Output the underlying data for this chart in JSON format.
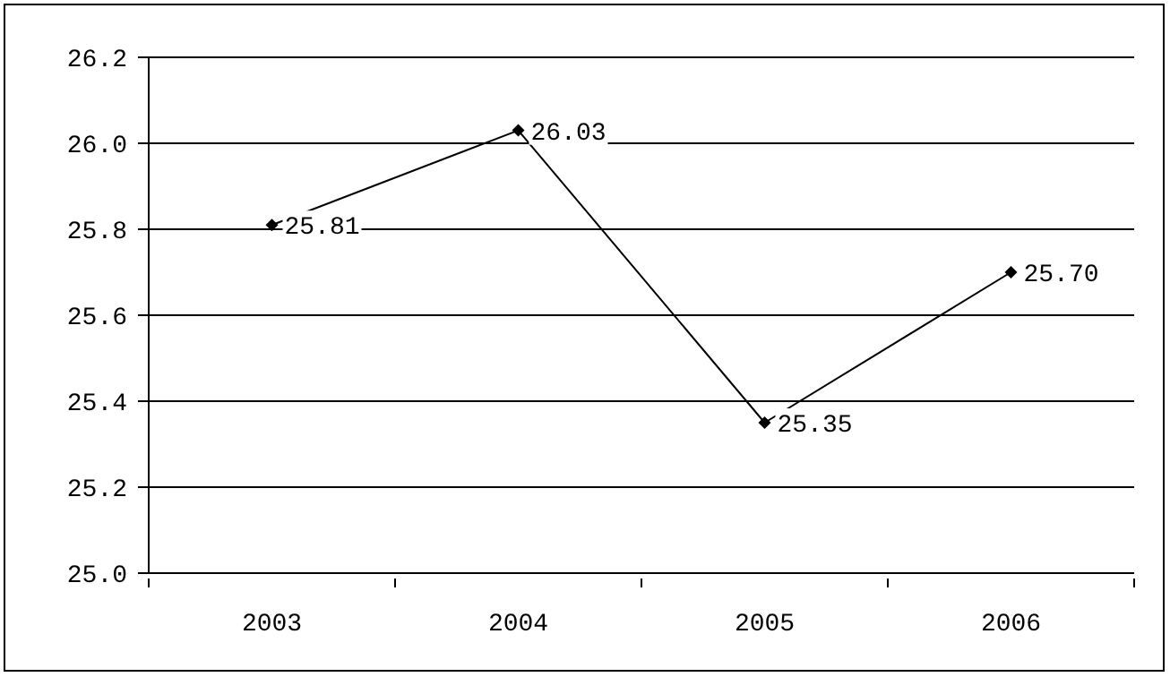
{
  "chart_data": {
    "type": "line",
    "categories": [
      "2003",
      "2004",
      "2005",
      "2006"
    ],
    "series": [
      {
        "color": "#000000",
        "values": [
          25.81,
          26.03,
          25.35,
          25.7
        ],
        "value_labels": [
          "25.81",
          "26.03",
          "25.35",
          "25.70"
        ]
      }
    ],
    "ylim": [
      25.0,
      26.2
    ],
    "yticks": [
      {
        "value": 25,
        "label": "25.0"
      },
      25.2,
      25.4,
      25.6,
      25.8,
      {
        "value": 26,
        "label": "26.0"
      },
      26.2
    ],
    "grid": "y",
    "legend": false,
    "marker": "diamond",
    "line_style": "solid"
  }
}
